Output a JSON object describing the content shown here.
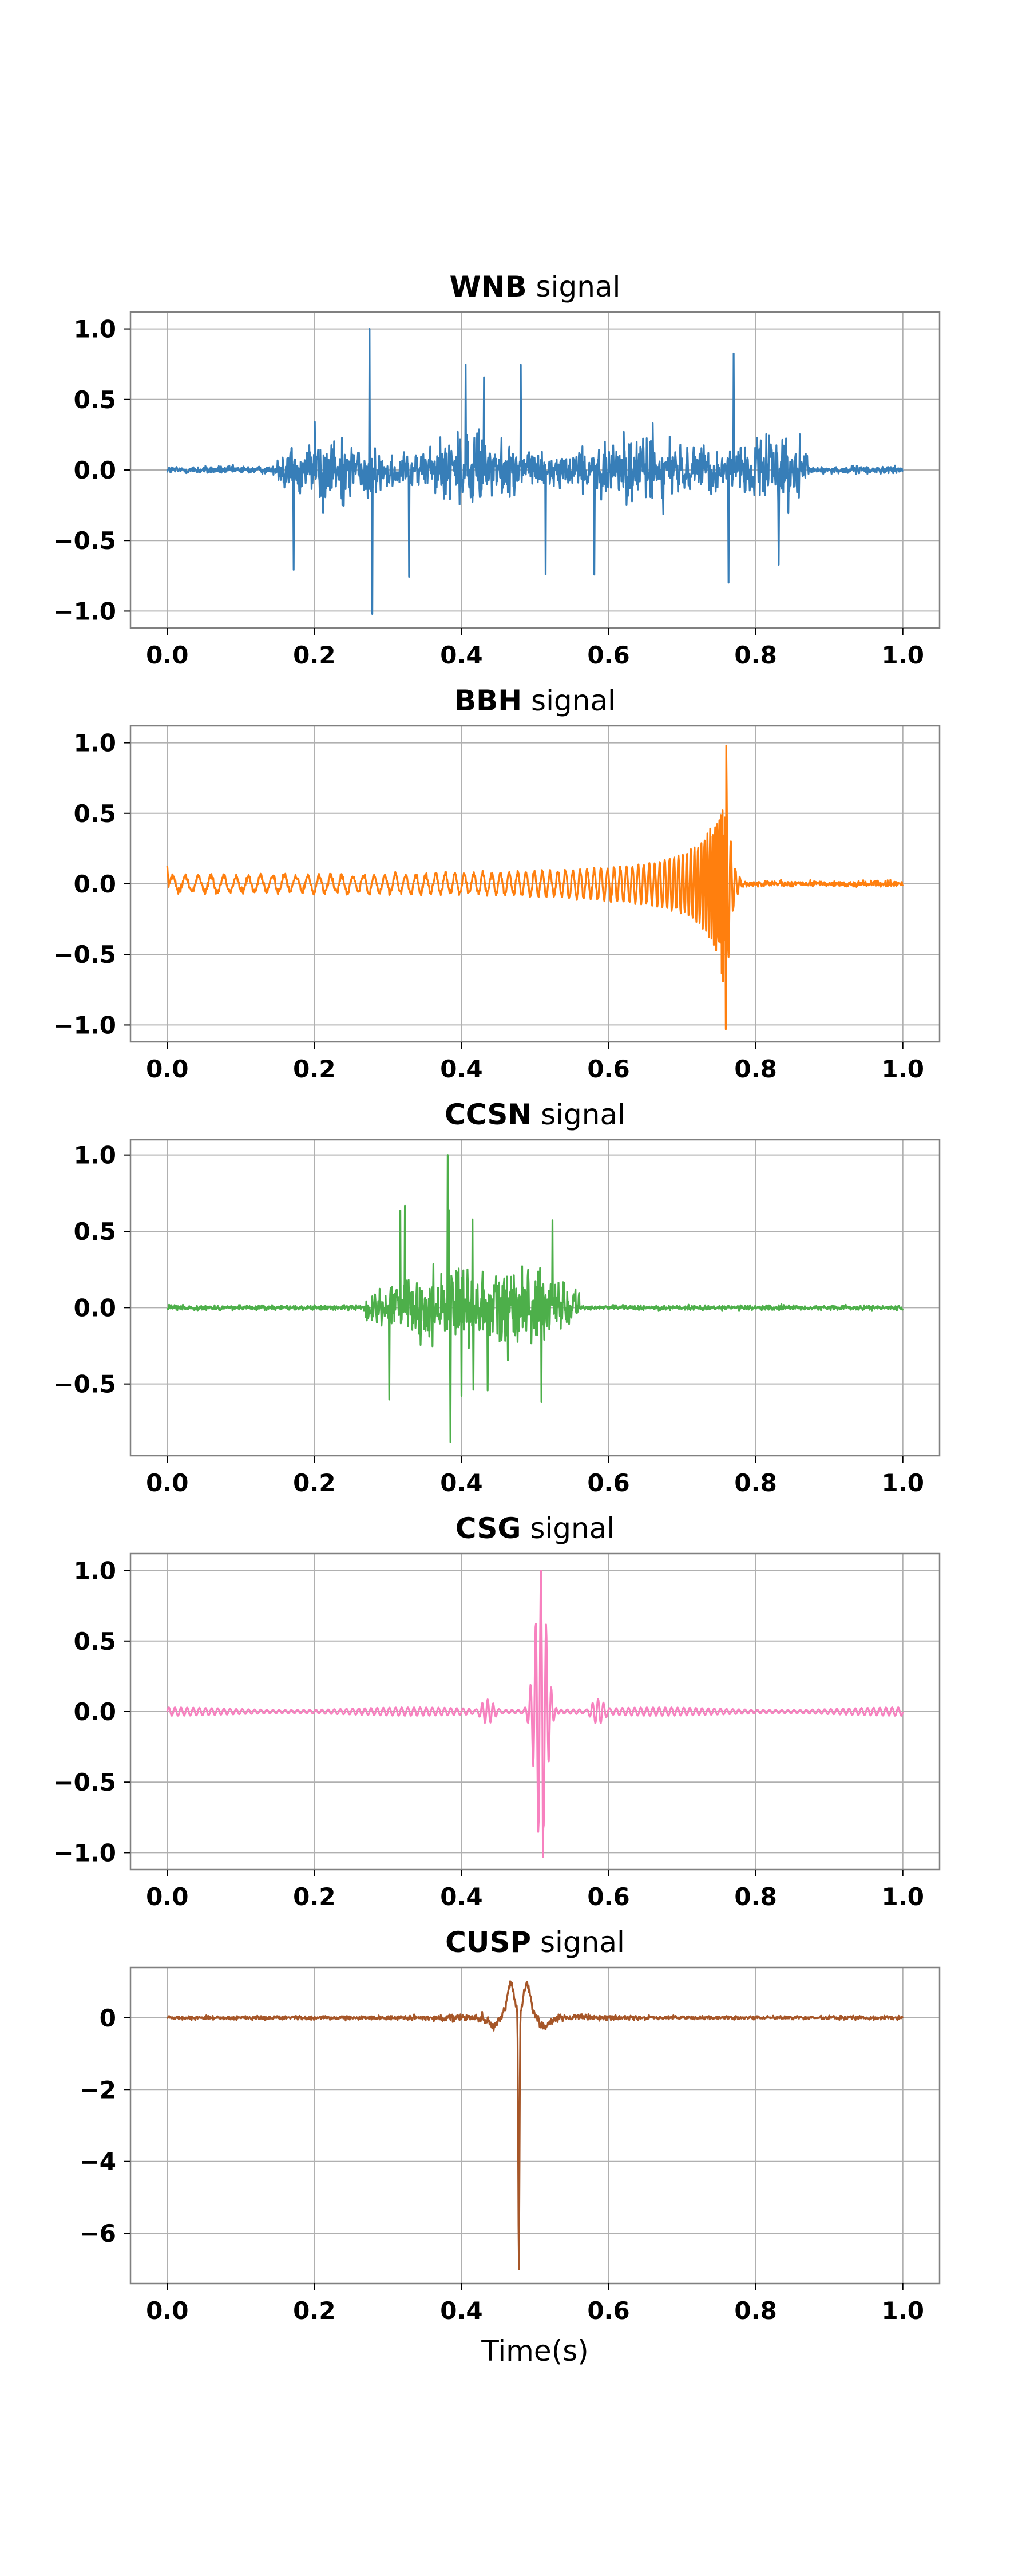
{
  "chart_data": [
    {
      "type": "line",
      "title_bold": "WNB",
      "title_rest": " signal",
      "color": "#377eb8",
      "xlim": [
        -0.05,
        1.05
      ],
      "ylim": [
        -1.12,
        1.12
      ],
      "xticks": [
        0.0,
        0.2,
        0.4,
        0.6,
        0.8,
        1.0
      ],
      "xticklabels": [
        "0.0",
        "0.2",
        "0.4",
        "0.6",
        "0.8",
        "1.0"
      ],
      "yticks": [
        -1.0,
        -0.5,
        0.0,
        0.5,
        1.0
      ],
      "yticklabels": [
        "−1.0",
        "−0.5",
        "0.0",
        "0.5",
        "1.0"
      ],
      "grid": true,
      "shape": {
        "kind": "burst_noise",
        "start": 0.15,
        "end": 0.87,
        "background": 0.05,
        "peak": 1.0,
        "min": -1.02,
        "peak_x": 0.275
      }
    },
    {
      "type": "line",
      "title_bold": "BBH",
      "title_rest": " signal",
      "color": "#ff7f0e",
      "xlim": [
        -0.05,
        1.05
      ],
      "ylim": [
        -1.12,
        1.12
      ],
      "xticks": [
        0.0,
        0.2,
        0.4,
        0.6,
        0.8,
        1.0
      ],
      "xticklabels": [
        "0.0",
        "0.2",
        "0.4",
        "0.6",
        "0.8",
        "1.0"
      ],
      "yticks": [
        -1.0,
        -0.5,
        0.0,
        0.5,
        1.0
      ],
      "yticklabels": [
        "−1.0",
        "−0.5",
        "0.0",
        "0.5",
        "1.0"
      ],
      "grid": true,
      "shape": {
        "kind": "chirp",
        "merger": 0.76,
        "peak": 0.98,
        "min": -1.03,
        "noise": 0.02,
        "start_value": 0.13
      }
    },
    {
      "type": "line",
      "title_bold": "CCSN",
      "title_rest": " signal",
      "color": "#4daf4a",
      "xlim": [
        -0.05,
        1.05
      ],
      "ylim": [
        -0.97,
        1.1
      ],
      "xticks": [
        0.0,
        0.2,
        0.4,
        0.6,
        0.8,
        1.0
      ],
      "xticklabels": [
        "0.0",
        "0.2",
        "0.4",
        "0.6",
        "0.8",
        "1.0"
      ],
      "yticks": [
        -0.5,
        0.0,
        0.5,
        1.0
      ],
      "yticklabels": [
        "−0.5",
        "0.0",
        "0.5",
        "1.0"
      ],
      "grid": true,
      "shape": {
        "kind": "burst_noise",
        "start": 0.27,
        "end": 0.56,
        "background": 0.03,
        "peak": 1.0,
        "min": -0.88,
        "peak_x": 0.381
      }
    },
    {
      "type": "line",
      "title_bold": "CSG",
      "title_rest": " signal",
      "color": "#f781bf",
      "xlim": [
        -0.05,
        1.05
      ],
      "ylim": [
        -1.12,
        1.12
      ],
      "xticks": [
        0.0,
        0.2,
        0.4,
        0.6,
        0.8,
        1.0
      ],
      "xticklabels": [
        "0.0",
        "0.2",
        "0.4",
        "0.6",
        "0.8",
        "1.0"
      ],
      "yticks": [
        -1.0,
        -0.5,
        0.0,
        0.5,
        1.0
      ],
      "yticklabels": [
        "−1.0",
        "−0.5",
        "0.0",
        "0.5",
        "1.0"
      ],
      "grid": true,
      "shape": {
        "kind": "sine_gaussian",
        "center": 0.508,
        "peak": 1.0,
        "min": -1.03,
        "ripple": 0.03
      }
    },
    {
      "type": "line",
      "title_bold": "CUSP",
      "title_rest": " signal",
      "color": "#a65628",
      "xlim": [
        -0.05,
        1.05
      ],
      "ylim": [
        -7.4,
        1.4
      ],
      "xticks": [
        0.0,
        0.2,
        0.4,
        0.6,
        0.8,
        1.0
      ],
      "xticklabels": [
        "0.0",
        "0.2",
        "0.4",
        "0.6",
        "0.8",
        "1.0"
      ],
      "yticks": [
        -6,
        -4,
        -2,
        0
      ],
      "yticklabels": [
        "−6",
        "−4",
        "−2",
        "0"
      ],
      "grid": true,
      "xlabel": "Time(s)",
      "shape": {
        "kind": "cusp",
        "center": 0.478,
        "min": -7.0,
        "side_peak": 1.0,
        "noise": 0.05
      }
    }
  ]
}
